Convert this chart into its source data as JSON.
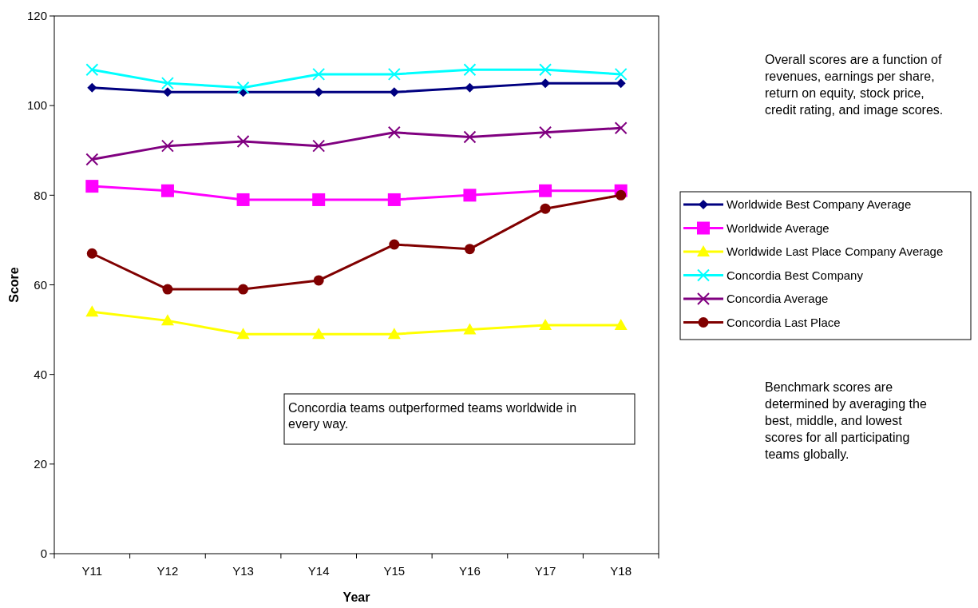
{
  "chart_data": {
    "type": "line",
    "xlabel": "Year",
    "ylabel": "Score",
    "categories": [
      "Y11",
      "Y12",
      "Y13",
      "Y14",
      "Y15",
      "Y16",
      "Y17",
      "Y18"
    ],
    "ylim": [
      0,
      120
    ],
    "yticks": [
      0,
      20,
      40,
      60,
      80,
      100,
      120
    ],
    "grid": false,
    "legend": "right",
    "series": [
      {
        "name": "Worldwide Best Company Average",
        "color": "#000080",
        "marker": "diamond",
        "values": [
          104,
          103,
          103,
          103,
          103,
          104,
          105,
          105
        ]
      },
      {
        "name": "Worldwide Average",
        "color": "#ff00ff",
        "marker": "square",
        "values": [
          82,
          81,
          79,
          79,
          79,
          80,
          81,
          81
        ]
      },
      {
        "name": "Worldwide Last Place Company Average",
        "color": "#ffff00",
        "marker": "triangle",
        "values": [
          54,
          52,
          49,
          49,
          49,
          50,
          51,
          51
        ]
      },
      {
        "name": "Concordia Best Company",
        "color": "#00ffff",
        "marker": "cross",
        "values": [
          108,
          105,
          104,
          107,
          107,
          108,
          108,
          107
        ]
      },
      {
        "name": "Concordia Average",
        "color": "#800080",
        "marker": "cross",
        "values": [
          88,
          91,
          92,
          91,
          94,
          93,
          94,
          95
        ]
      },
      {
        "name": "Concordia Last Place",
        "color": "#800000",
        "marker": "circle",
        "values": [
          67,
          59,
          59,
          61,
          69,
          68,
          77,
          80
        ]
      }
    ],
    "annotations": [
      "Concordia teams outperformed teams worldwide in every way.",
      "Overall scores are a function of revenues, earnings per share, return on equity, stock price, credit rating, and image scores.",
      "Benchmark scores are determined by averaging the best, middle, and lowest scores for all participating teams globally."
    ]
  }
}
